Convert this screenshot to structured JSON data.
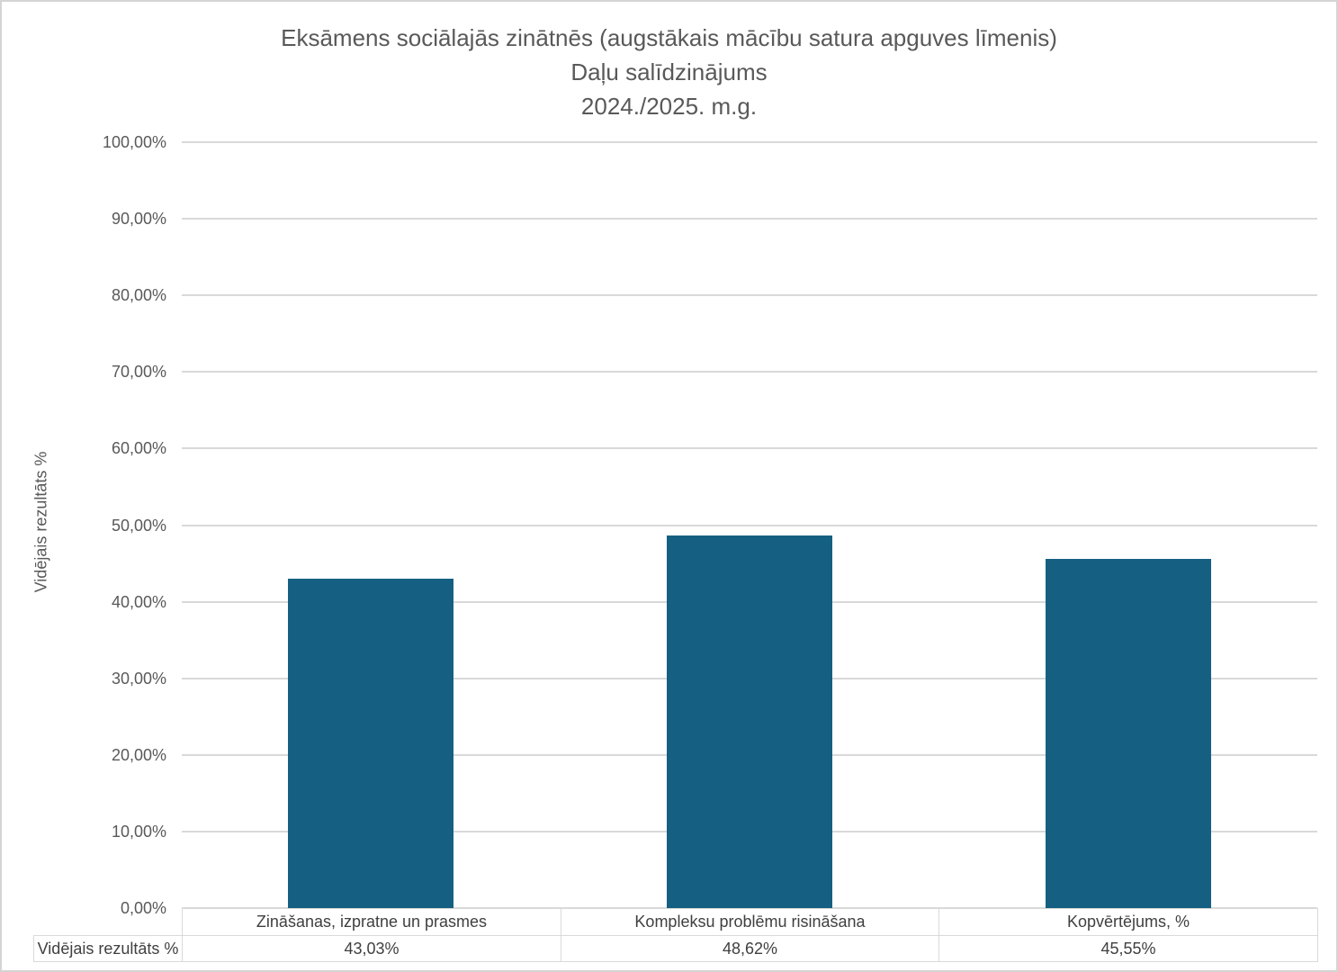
{
  "chart": {
    "title_lines": [
      "Eksāmens sociālajās zinātnēs (augstākais mācību satura apguves līmenis)",
      "Daļu salīdzinājums",
      "2024./2025. m.g."
    ],
    "ylabel": "Vidējais rezultāts %"
  },
  "chart_data": {
    "type": "bar",
    "title": "Eksāmens sociālajās zinātnēs (augstākais mācību satura apguves līmenis) Daļu salīdzinājums 2024./2025. m.g.",
    "categories": [
      "Zināšanas, izpratne un prasmes",
      "Kompleksu problēmu risināšana",
      "Kopvērtējums, %"
    ],
    "values": [
      43.03,
      48.62,
      45.55
    ],
    "value_labels": [
      "43,03%",
      "48,62%",
      "45,55%"
    ],
    "series_name": "Vidējais rezultāts %",
    "xlabel": "",
    "ylabel": "Vidējais rezultāts %",
    "ylim": [
      0,
      100
    ],
    "ytick_step": 10,
    "ytick_labels": [
      "0,00%",
      "10,00%",
      "20,00%",
      "30,00%",
      "40,00%",
      "50,00%",
      "60,00%",
      "70,00%",
      "80,00%",
      "90,00%",
      "100,00%"
    ],
    "grid": true,
    "legend": "none",
    "data_table": {
      "row_header": "Vidējais rezultāts %",
      "rows": [
        [
          "43,03%",
          "48,62%",
          "45,55%"
        ]
      ]
    }
  },
  "colors": {
    "bar": "#156082",
    "grid": "#d9d9d9",
    "border": "#d4d4d4",
    "text": "#595959",
    "table_text": "#404040"
  }
}
